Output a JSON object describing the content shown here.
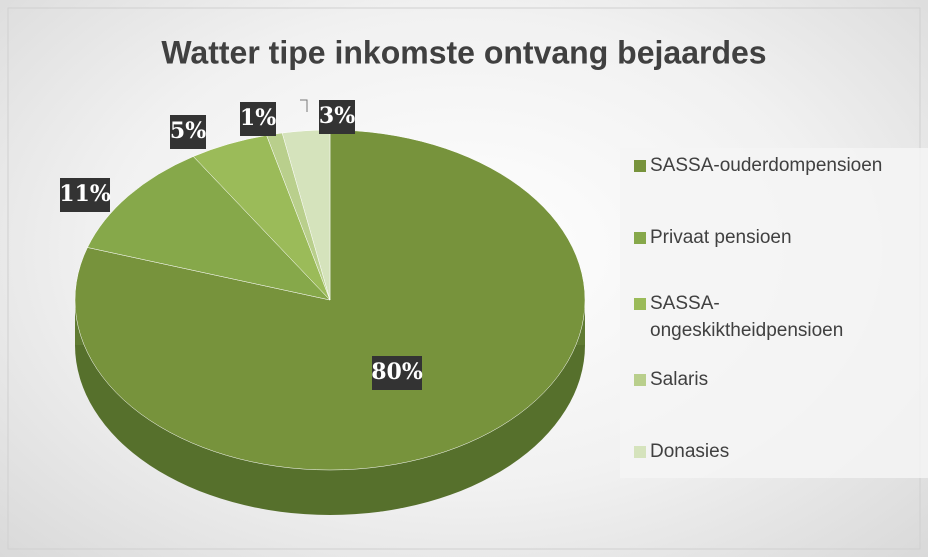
{
  "chart_data": {
    "type": "pie",
    "title": "Watter tipe inkomste ontvang bejaardes",
    "categories": [
      "SASSA-ouderdompensioen",
      "Privaat pensioen",
      "SASSA-ongeskiktheidpensioen",
      "Salaris",
      "Donasies"
    ],
    "values": [
      80,
      11,
      5,
      1,
      3
    ],
    "value_labels": [
      "80%",
      "11%",
      "5%",
      "1%",
      "3%"
    ],
    "colors": [
      "#77933c",
      "#86a84a",
      "#9bbb59",
      "#b9cf8c",
      "#d5e3bc"
    ],
    "legend": "right"
  }
}
